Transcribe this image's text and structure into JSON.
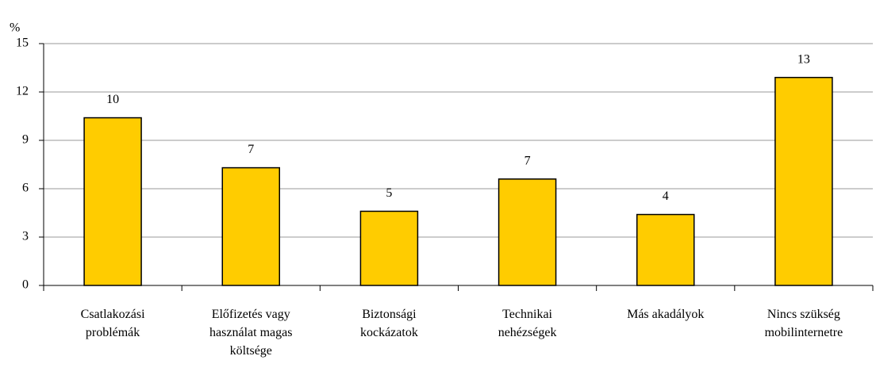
{
  "chart_data": {
    "type": "bar",
    "y_label": "%",
    "categories": [
      "Csatlakozási problémák",
      "Előfizetés vagy használat magas költsége",
      "Biztonsági kockázatok",
      "Technikai nehézségek",
      "Más akadályok",
      "Nincs szükség mobilinternetre"
    ],
    "values": [
      10.4,
      7.3,
      4.6,
      6.6,
      4.4,
      12.9
    ],
    "value_labels": [
      "10",
      "7",
      "5",
      "7",
      "4",
      "13"
    ],
    "color": "#ffcc00",
    "ylim": [
      0,
      15
    ],
    "yticks": [
      0,
      3,
      6,
      9,
      12,
      15
    ],
    "grid": true
  }
}
